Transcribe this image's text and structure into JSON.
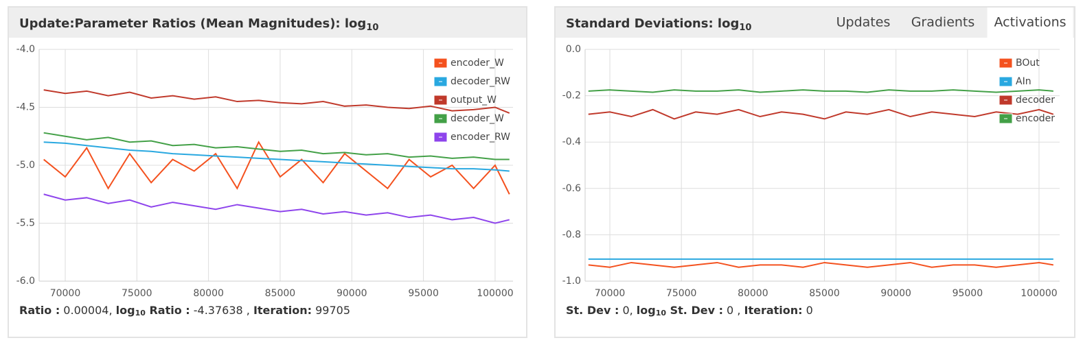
{
  "chart_data": [
    {
      "type": "line",
      "title": "Update:Parameter Ratios (Mean Magnitudes): log",
      "title_sub": "10",
      "x": [
        68500,
        70000,
        71500,
        73000,
        74500,
        76000,
        77500,
        79000,
        80500,
        82000,
        83500,
        85000,
        86500,
        88000,
        89500,
        91000,
        92500,
        94000,
        95500,
        97000,
        98500,
        100000,
        101000
      ],
      "xlim": [
        68180,
        101250
      ],
      "xticks": [
        70000,
        75000,
        80000,
        85000,
        90000,
        95000,
        100000
      ],
      "ylim": [
        -6,
        -4
      ],
      "yticks": [
        {
          "value": -4,
          "label": "-4.0"
        },
        -4.5,
        {
          "value": -5,
          "label": "-5.0"
        },
        -5.5,
        {
          "value": -6,
          "label": "-6.0"
        }
      ],
      "grid": true,
      "legend": "top-right",
      "series": [
        {
          "name": "encoder_W",
          "color": "#f4511e",
          "values": [
            -4.95,
            -5.1,
            -4.85,
            -5.2,
            -4.9,
            -5.15,
            -4.95,
            -5.05,
            -4.9,
            -5.2,
            -4.8,
            -5.1,
            -4.95,
            -5.15,
            -4.9,
            -5.05,
            -5.2,
            -4.95,
            -5.1,
            -5.0,
            -5.2,
            -5.0,
            -5.25
          ]
        },
        {
          "name": "decoder_RW",
          "color": "#29a8e0",
          "values": [
            -4.8,
            -4.81,
            -4.83,
            -4.85,
            -4.87,
            -4.88,
            -4.9,
            -4.91,
            -4.92,
            -4.93,
            -4.94,
            -4.95,
            -4.96,
            -4.97,
            -4.98,
            -4.99,
            -5.0,
            -5.01,
            -5.02,
            -5.03,
            -5.03,
            -5.04,
            -5.05
          ]
        },
        {
          "name": "output_W",
          "color": "#c0392b",
          "values": [
            -4.35,
            -4.38,
            -4.36,
            -4.4,
            -4.37,
            -4.42,
            -4.4,
            -4.43,
            -4.41,
            -4.45,
            -4.44,
            -4.46,
            -4.47,
            -4.45,
            -4.49,
            -4.48,
            -4.5,
            -4.51,
            -4.49,
            -4.53,
            -4.52,
            -4.5,
            -4.55
          ]
        },
        {
          "name": "decoder_W",
          "color": "#43a047",
          "values": [
            -4.72,
            -4.75,
            -4.78,
            -4.76,
            -4.8,
            -4.79,
            -4.83,
            -4.82,
            -4.85,
            -4.84,
            -4.86,
            -4.88,
            -4.87,
            -4.9,
            -4.89,
            -4.91,
            -4.9,
            -4.93,
            -4.92,
            -4.94,
            -4.93,
            -4.95,
            -4.95
          ]
        },
        {
          "name": "encoder_RW",
          "color": "#8e44ec",
          "values": [
            -5.25,
            -5.3,
            -5.28,
            -5.33,
            -5.3,
            -5.36,
            -5.32,
            -5.35,
            -5.38,
            -5.34,
            -5.37,
            -5.4,
            -5.38,
            -5.42,
            -5.4,
            -5.43,
            -5.41,
            -5.45,
            -5.43,
            -5.47,
            -5.45,
            -5.5,
            -5.47
          ]
        }
      ],
      "status": [
        {
          "text": "Ratio :",
          "bold": true
        },
        {
          "text": " 0.00004, "
        },
        {
          "text": "log",
          "bold": true
        },
        {
          "text": "10",
          "bold": true,
          "sub": true
        },
        {
          "text": " Ratio :",
          "bold": true
        },
        {
          "text": " -4.37638 , "
        },
        {
          "text": "Iteration:",
          "bold": true
        },
        {
          "text": " 99705"
        }
      ]
    },
    {
      "type": "line",
      "title": "Standard Deviations: log",
      "title_sub": "10",
      "tabs": [
        "Updates",
        "Gradients",
        "Activations"
      ],
      "active_tab": 2,
      "x": [
        68500,
        70000,
        71500,
        73000,
        74500,
        76000,
        77500,
        79000,
        80500,
        82000,
        83500,
        85000,
        86500,
        88000,
        89500,
        91000,
        92500,
        94000,
        95500,
        97000,
        98500,
        100000,
        101000
      ],
      "xlim": [
        68270,
        101440
      ],
      "xticks": [
        70000,
        75000,
        80000,
        85000,
        90000,
        95000,
        100000
      ],
      "ylim": [
        -1,
        0
      ],
      "yticks": [
        {
          "value": 0,
          "label": "0.0"
        },
        -0.2,
        -0.4,
        -0.6,
        -0.8,
        {
          "value": -1,
          "label": "-1.0"
        }
      ],
      "grid": true,
      "legend": "top-right",
      "series": [
        {
          "name": "BOut",
          "color": "#f4511e",
          "values": [
            -0.93,
            -0.94,
            -0.92,
            -0.93,
            -0.94,
            -0.93,
            -0.92,
            -0.94,
            -0.93,
            -0.93,
            -0.94,
            -0.92,
            -0.93,
            -0.94,
            -0.93,
            -0.92,
            -0.94,
            -0.93,
            -0.93,
            -0.94,
            -0.93,
            -0.92,
            -0.93
          ]
        },
        {
          "name": "AIn",
          "color": "#29a8e0",
          "values": [
            -0.905,
            -0.905,
            -0.905,
            -0.905,
            -0.905,
            -0.905,
            -0.905,
            -0.905,
            -0.905,
            -0.905,
            -0.905,
            -0.905,
            -0.905,
            -0.905,
            -0.905,
            -0.905,
            -0.905,
            -0.905,
            -0.905,
            -0.905,
            -0.905,
            -0.905,
            -0.905
          ]
        },
        {
          "name": "decoder",
          "color": "#c0392b",
          "values": [
            -0.28,
            -0.27,
            -0.29,
            -0.26,
            -0.3,
            -0.27,
            -0.28,
            -0.26,
            -0.29,
            -0.27,
            -0.28,
            -0.3,
            -0.27,
            -0.28,
            -0.26,
            -0.29,
            -0.27,
            -0.28,
            -0.29,
            -0.27,
            -0.28,
            -0.26,
            -0.28
          ]
        },
        {
          "name": "encoder",
          "color": "#43a047",
          "values": [
            -0.18,
            -0.175,
            -0.18,
            -0.185,
            -0.175,
            -0.18,
            -0.18,
            -0.175,
            -0.185,
            -0.18,
            -0.175,
            -0.18,
            -0.18,
            -0.185,
            -0.175,
            -0.18,
            -0.18,
            -0.175,
            -0.18,
            -0.185,
            -0.18,
            -0.175,
            -0.18
          ]
        }
      ],
      "status": [
        {
          "text": "St. Dev :",
          "bold": true
        },
        {
          "text": " 0, "
        },
        {
          "text": "log",
          "bold": true
        },
        {
          "text": "10",
          "bold": true,
          "sub": true
        },
        {
          "text": " St. Dev :",
          "bold": true
        },
        {
          "text": " 0 , "
        },
        {
          "text": "Iteration:",
          "bold": true
        },
        {
          "text": " 0"
        }
      ]
    }
  ]
}
